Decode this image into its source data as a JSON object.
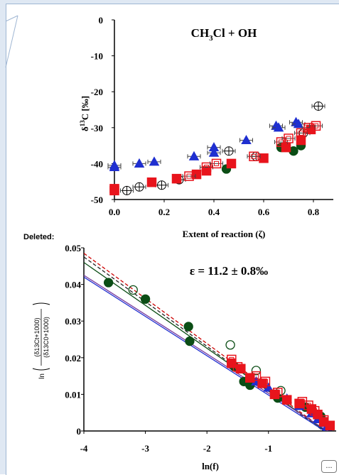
{
  "annotation": {
    "deleted_label": "Deleted:",
    "more_button": "..."
  },
  "chart_data": [
    {
      "type": "scatter",
      "title": "CH3Cl + OH",
      "title_parts": {
        "pre": "CH",
        "sub": "3",
        "post": "Cl + OH"
      },
      "xlabel": "Extent of  reaction (ζ)",
      "ylabel": "δ13C [‰]",
      "ylabel_parts": {
        "pre": "δ",
        "sup": "13",
        "post": "C [‰]"
      },
      "xlim": [
        0,
        0.88
      ],
      "ylim": [
        -50,
        0
      ],
      "xticks": [
        "0.0",
        "0.2",
        "0.4",
        "0.6",
        "0.8"
      ],
      "yticks": [
        "0",
        "-10",
        "-20",
        "-30",
        "-40",
        "-50"
      ],
      "grid": false,
      "series": [
        {
          "marker": "triangle",
          "color": "#1f2fd0",
          "filled": true,
          "x": [
            0.0,
            0.0,
            0.1,
            0.16,
            0.32,
            0.4,
            0.4,
            0.53,
            0.65,
            0.66,
            0.73,
            0.74
          ],
          "y": [
            -41,
            -40.5,
            -40,
            -39.5,
            -38,
            -35.5,
            -37,
            -33.5,
            -29.5,
            -30,
            -28.5,
            -29
          ]
        },
        {
          "marker": "circle-cross",
          "color": "#000000",
          "filled": false,
          "x": [
            0.05,
            0.1,
            0.19,
            0.26,
            0.46,
            0.57,
            0.76,
            0.82
          ],
          "y": [
            -47.5,
            -46.5,
            -46,
            -44.5,
            -36.5,
            -38,
            -31.5,
            -24
          ]
        },
        {
          "marker": "circle",
          "color": "#0b4d15",
          "filled": true,
          "x": [
            0.45,
            0.67,
            0.72,
            0.75
          ],
          "y": [
            -41.5,
            -35.5,
            -36.5,
            -35
          ]
        },
        {
          "marker": "square",
          "color": "#e8141c",
          "filled": true,
          "x": [
            0.0,
            0.0,
            0.15,
            0.25,
            0.33,
            0.37,
            0.47,
            0.6,
            0.69,
            0.75,
            0.79
          ],
          "y": [
            -47,
            -47.5,
            -45.2,
            -44.2,
            -43,
            -42,
            -40,
            -38.5,
            -35.5,
            -33.5,
            -30.5
          ]
        },
        {
          "marker": "square",
          "color": "#e8141c",
          "filled": false,
          "x": [
            0.3,
            0.37,
            0.41,
            0.56,
            0.67,
            0.7,
            0.75,
            0.78,
            0.81
          ],
          "y": [
            -43.5,
            -41,
            -40,
            -38,
            -34,
            -33,
            -31.5,
            -30,
            -29.5
          ]
        }
      ]
    },
    {
      "type": "scatter",
      "title": "ε = 11.2 ± 0.8‰",
      "xlabel": "ln(f)",
      "ylabel": "ln[(δ13Ct+1000)/(δ13C0+1000)]",
      "ylabel_parts": {
        "num": "(δ13Ct+1000)",
        "den": "(δ13C0+1000)",
        "prefix": "ln"
      },
      "xlim": [
        -4,
        0.1
      ],
      "ylim": [
        0,
        0.05
      ],
      "xticks": [
        "-4",
        "-3",
        "-2",
        "-1"
      ],
      "yticks": [
        "0",
        "0.01",
        "0.02",
        "0.03",
        "0.04",
        "0.05"
      ],
      "grid": false,
      "lines": [
        {
          "color": "#cc0000",
          "style": "dashed",
          "x": [
            -4,
            0.1
          ],
          "y": [
            0.0485,
            -0.002
          ]
        },
        {
          "color": "#222222",
          "style": "dashed",
          "x": [
            -4,
            0.1
          ],
          "y": [
            0.0475,
            -0.0025
          ]
        },
        {
          "color": "#0b4d15",
          "style": "solid",
          "x": [
            -4,
            0.1
          ],
          "y": [
            0.046,
            -0.002
          ]
        },
        {
          "color": "#7b3fa0",
          "style": "solid",
          "x": [
            -4,
            0.1
          ],
          "y": [
            0.0425,
            -0.0015
          ]
        },
        {
          "color": "#1f2fd0",
          "style": "solid",
          "x": [
            -4,
            0.1
          ],
          "y": [
            0.042,
            -0.002
          ]
        }
      ],
      "series": [
        {
          "marker": "circle",
          "color": "#0b4d15",
          "filled": true,
          "x": [
            -3.6,
            -3.0,
            -2.3,
            -2.28,
            -1.55,
            -1.4,
            -1.3,
            -0.85,
            -0.4,
            -0.15
          ],
          "y": [
            0.0405,
            0.036,
            0.0285,
            0.0245,
            0.0175,
            0.0135,
            0.0125,
            0.009,
            0.0065,
            0.004
          ]
        },
        {
          "marker": "circle",
          "color": "#0b4d15",
          "filled": false,
          "x": [
            -3.2,
            -1.62,
            -1.2,
            -0.8
          ],
          "y": [
            0.0385,
            0.0235,
            0.0165,
            0.011
          ]
        },
        {
          "marker": "triangle",
          "color": "#1f2fd0",
          "filled": true,
          "x": [
            -1.2,
            -1.0,
            -0.7,
            -0.5,
            -0.3,
            -0.2,
            -0.1,
            -0.05
          ],
          "y": [
            0.0135,
            0.0118,
            0.0088,
            0.0068,
            0.0048,
            0.0032,
            0.0022,
            0.0012
          ]
        },
        {
          "marker": "square",
          "color": "#e8141c",
          "filled": true,
          "x": [
            -1.6,
            -1.45,
            -1.3,
            -1.1,
            -0.9,
            -0.7,
            -0.5,
            -0.3,
            -0.2,
            -0.1,
            0.0
          ],
          "y": [
            0.0185,
            0.017,
            0.0145,
            0.013,
            0.01,
            0.0085,
            0.0075,
            0.006,
            0.0045,
            0.0025,
            0.0015
          ]
        },
        {
          "marker": "square",
          "color": "#e8141c",
          "filled": false,
          "x": [
            -1.6,
            -1.5,
            -1.2,
            -1.05,
            -0.85,
            -0.45,
            -0.35,
            -0.25,
            -0.1
          ],
          "y": [
            0.0195,
            0.0175,
            0.015,
            0.0135,
            0.0105,
            0.008,
            0.007,
            0.0055,
            0.003
          ]
        }
      ]
    }
  ]
}
